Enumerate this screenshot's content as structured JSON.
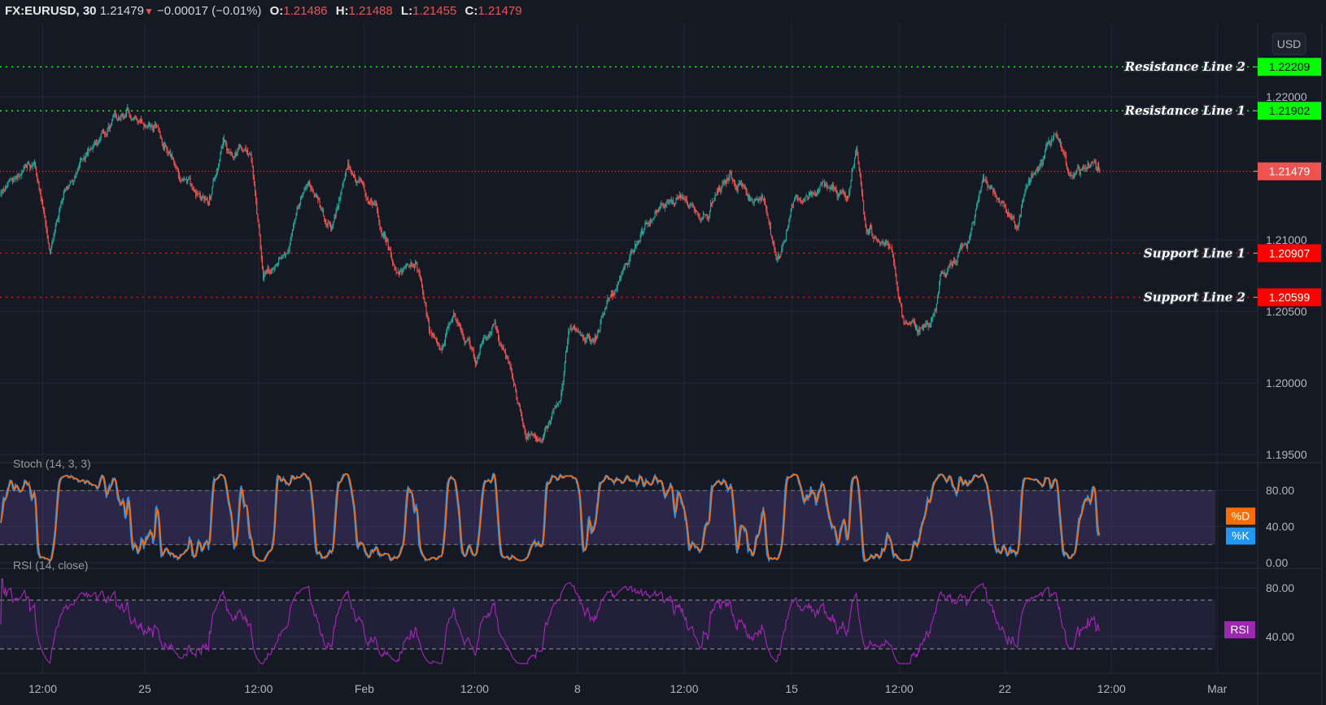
{
  "header": {
    "symbol": "FX:EURUSD, 30",
    "last": "1.21479",
    "change": "−0.00017 (−0.01%)",
    "o_label": "O:",
    "o": "1.21486",
    "h_label": "H:",
    "h": "1.21488",
    "l_label": "L:",
    "l": "1.21455",
    "c_label": "C:",
    "c": "1.21479",
    "direction_icon": "triangle-down-icon"
  },
  "currency_button": "USD",
  "colors": {
    "background": "#151924",
    "grid": "#232734",
    "up": "#26a69a",
    "down": "#ef5350",
    "resistance": "#00ff00",
    "support": "#ff0000",
    "last_price": "#ef5350",
    "stoch_k": "#2196f3",
    "stoch_d": "#ff6d00",
    "rsi": "#9c27b0"
  },
  "chart_data": {
    "type": "candlestick",
    "title": "FX:EURUSD, 30",
    "price_ticks": [
      "1.22000",
      "1.21000",
      "1.20500",
      "1.20000",
      "1.19500"
    ],
    "price_tick_values": [
      1.22,
      1.21,
      1.205,
      1.2,
      1.195
    ],
    "price_range": [
      1.1925,
      1.2262
    ],
    "time_labels": [
      {
        "bar": 46,
        "label": "12:00"
      },
      {
        "bar": 158,
        "label": "25"
      },
      {
        "bar": 283,
        "label": "12:00"
      },
      {
        "bar": 399,
        "label": "Feb"
      },
      {
        "bar": 520,
        "label": "12:00"
      },
      {
        "bar": 633,
        "label": "8"
      },
      {
        "bar": 750,
        "label": "12:00"
      },
      {
        "bar": 868,
        "label": "15"
      },
      {
        "bar": 986,
        "label": "12:00"
      },
      {
        "bar": 1102,
        "label": "22"
      },
      {
        "bar": 1219,
        "label": "12:00"
      },
      {
        "bar": 1335,
        "label": "Mar"
      }
    ],
    "price_path_waypoints": [
      [
        0,
        1.2132
      ],
      [
        37,
        1.2155
      ],
      [
        54,
        1.209
      ],
      [
        70,
        1.2132
      ],
      [
        102,
        1.217
      ],
      [
        140,
        1.2185
      ],
      [
        172,
        1.2179
      ],
      [
        195,
        1.2144
      ],
      [
        228,
        1.2126
      ],
      [
        244,
        1.2167
      ],
      [
        274,
        1.2158
      ],
      [
        288,
        1.2073
      ],
      [
        316,
        1.2096
      ],
      [
        335,
        1.2141
      ],
      [
        363,
        1.2108
      ],
      [
        381,
        1.2152
      ],
      [
        409,
        1.2126
      ],
      [
        437,
        1.2073
      ],
      [
        456,
        1.2084
      ],
      [
        470,
        1.2037
      ],
      [
        484,
        1.2019
      ],
      [
        498,
        1.2046
      ],
      [
        521,
        1.2014
      ],
      [
        539,
        1.204
      ],
      [
        558,
        1.2008
      ],
      [
        577,
        1.1966
      ],
      [
        595,
        1.196
      ],
      [
        614,
        1.199
      ],
      [
        623,
        1.204
      ],
      [
        651,
        1.2031
      ],
      [
        670,
        1.2061
      ],
      [
        707,
        1.2108
      ],
      [
        744,
        1.2132
      ],
      [
        772,
        1.212
      ],
      [
        800,
        1.2144
      ],
      [
        837,
        1.2126
      ],
      [
        851,
        1.2087
      ],
      [
        870,
        1.2126
      ],
      [
        902,
        1.2135
      ],
      [
        930,
        1.2132
      ],
      [
        939,
        1.2164
      ],
      [
        949,
        1.2108
      ],
      [
        977,
        1.209
      ],
      [
        990,
        1.2043
      ],
      [
        1004,
        1.2037
      ],
      [
        1023,
        1.2049
      ],
      [
        1032,
        1.2073
      ],
      [
        1060,
        1.2096
      ],
      [
        1079,
        1.2141
      ],
      [
        1116,
        1.2114
      ],
      [
        1135,
        1.2155
      ],
      [
        1158,
        1.2173
      ],
      [
        1172,
        1.2144
      ],
      [
        1200,
        1.2155
      ],
      [
        1206,
        1.21479
      ]
    ],
    "horizontal_lines": [
      {
        "name": "Resistance Line 2",
        "price": 1.22209,
        "label": "1.22209",
        "kind": "resistance"
      },
      {
        "name": "Resistance Line 1",
        "price": 1.21902,
        "label": "1.21902",
        "kind": "resistance"
      },
      {
        "name": "Support Line 1",
        "price": 1.20907,
        "label": "1.20907",
        "kind": "support"
      },
      {
        "name": "Support Line 2",
        "price": 1.20599,
        "label": "1.20599",
        "kind": "support"
      }
    ],
    "last_price": {
      "price": 1.21479,
      "label": "1.21479"
    },
    "stochastic": {
      "title": "Stoch (14, 3, 3)",
      "ticks": [
        "80.00",
        "40.00",
        "0.00"
      ],
      "tick_values": [
        80,
        40,
        0
      ],
      "bands": [
        20,
        80
      ],
      "k_label": "%K",
      "d_label": "%D"
    },
    "rsi": {
      "title": "RSI (14, close)",
      "ticks": [
        "80.00",
        "40.00"
      ],
      "tick_values": [
        80,
        40
      ],
      "bands": [
        30,
        70
      ],
      "label": "RSI"
    }
  }
}
